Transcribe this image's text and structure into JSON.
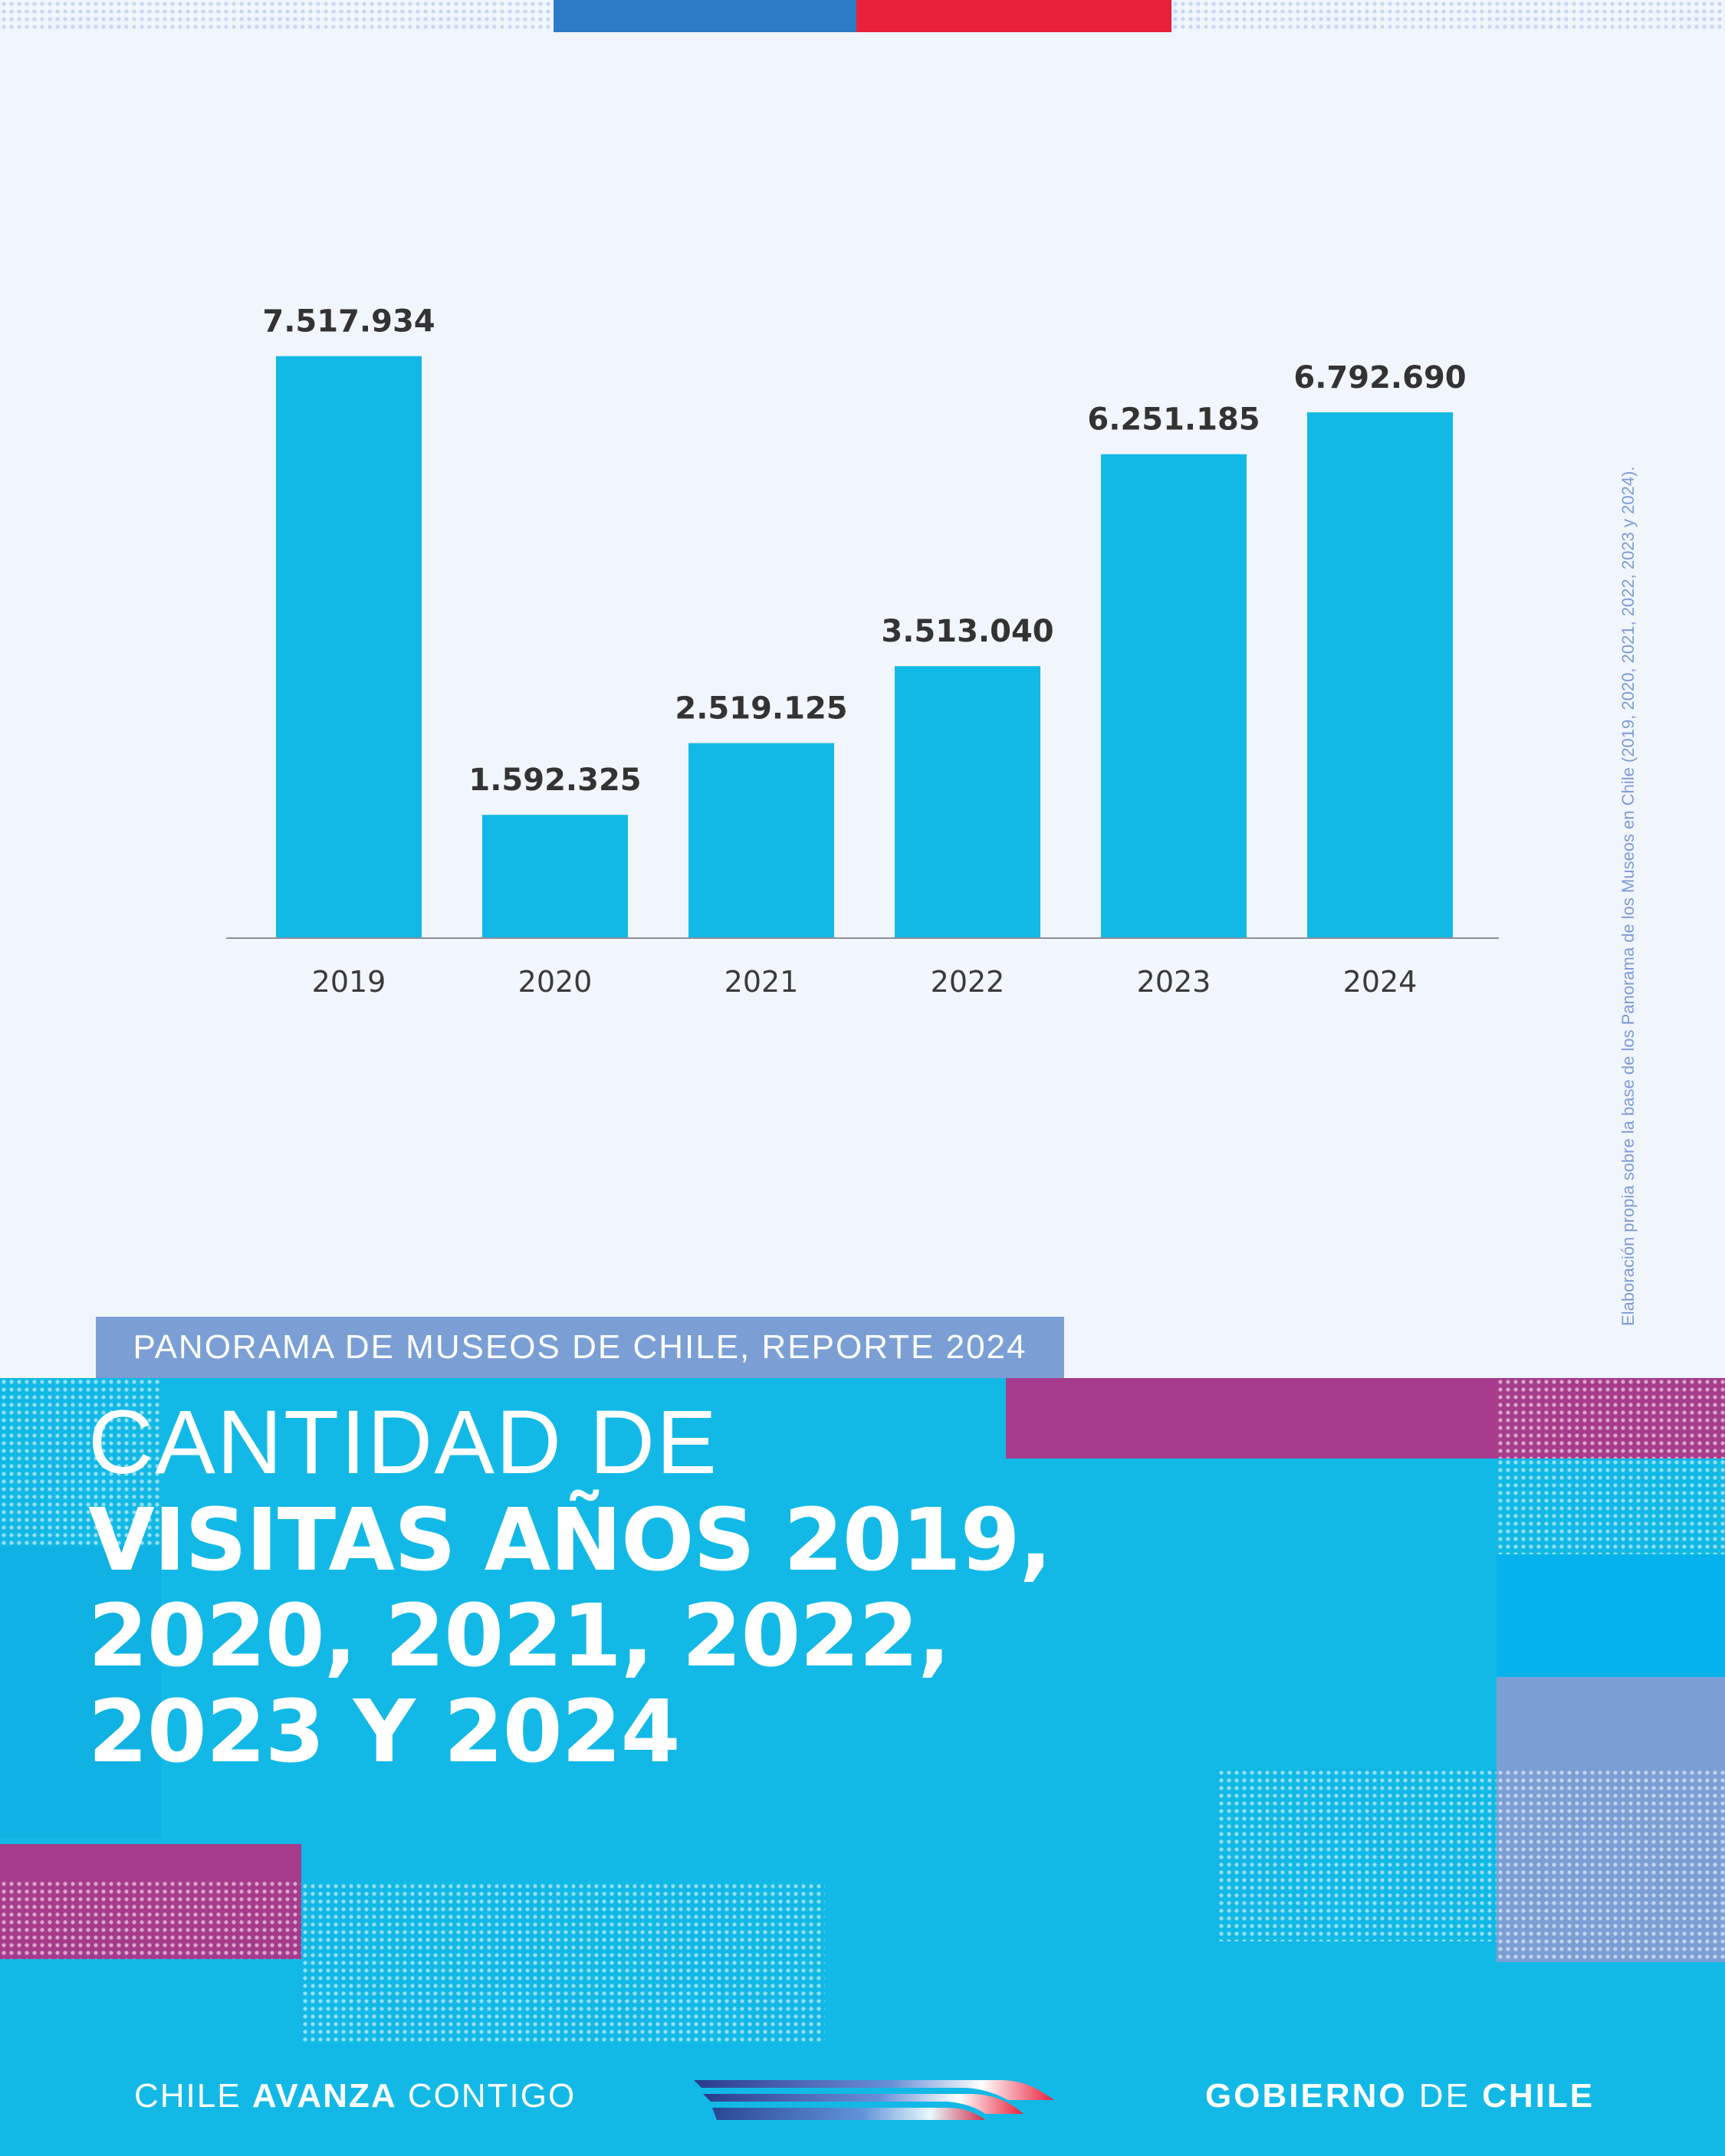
{
  "colors": {
    "background": "#f1f5fc",
    "bar": "#12b9e6",
    "panel": "#12b9e6",
    "brand_blue": "#2b7bc6",
    "brand_red": "#e8203a",
    "magenta": "#a63b8c",
    "lavender": "#7b9fd4",
    "value_label": "#333333"
  },
  "chart_data": {
    "type": "bar",
    "categories": [
      "2019",
      "2020",
      "2021",
      "2022",
      "2023",
      "2024"
    ],
    "values": [
      7517934,
      1592325,
      2519125,
      3513040,
      6251185,
      6792690
    ],
    "value_labels": [
      "7.517.934",
      "1.592.325",
      "2.519.125",
      "3.513.040",
      "6.251.185",
      "6.792.690"
    ],
    "title": "",
    "xlabel": "",
    "ylabel": "",
    "ylim": [
      0,
      8000000
    ],
    "grid": false,
    "legend": "none"
  },
  "source_note": "Elaboración propia sobre la base de los Panorama de los Museos en Chile (2019, 2020, 2021, 2022, 2023 y 2024).",
  "header": {
    "report_label": "PANORAMA DE MUSEOS DE CHILE, REPORTE 2024",
    "title_light": "CANTIDAD DE",
    "title_bold_1": "VISITAS AÑOS 2019,",
    "title_bold_2": "2020, 2021, 2022,",
    "title_bold_3": "2023 Y 2024"
  },
  "footer": {
    "slogan_1": "CHILE ",
    "slogan_2": "AVANZA",
    "slogan_3": " CONTIGO",
    "gov_1": "GOBIERNO",
    "gov_2": " DE ",
    "gov_3": "CHILE"
  }
}
